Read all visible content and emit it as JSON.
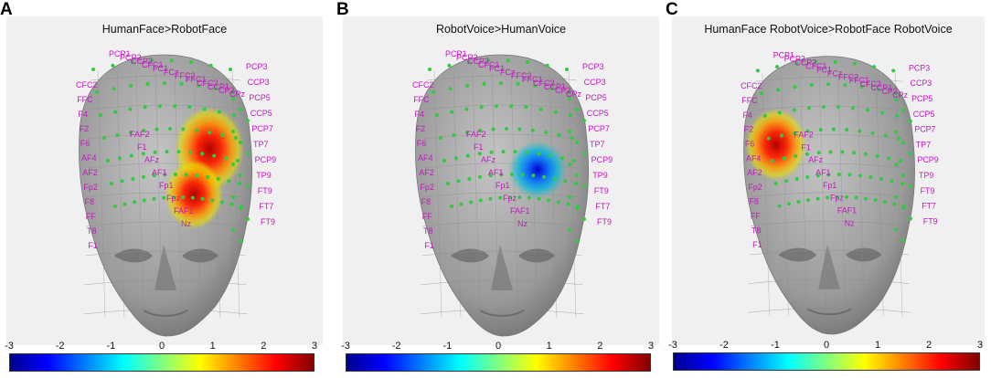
{
  "colorbar": {
    "ticks": [
      "-3",
      "-2",
      "-1",
      "0",
      "1",
      "2",
      "3"
    ],
    "stops": [
      "#00008f",
      "#0000ff",
      "#0080ff",
      "#00ffff",
      "#80ff80",
      "#ffff00",
      "#ff8000",
      "#ff0000",
      "#800000"
    ]
  },
  "colors": {
    "electrode": "#2ecc40",
    "electrode_label": "#c218c2",
    "background": "#f0f0f0",
    "head": "#9a9a9a"
  },
  "electrode_labels": {
    "top": [
      "PCP1",
      "PCP2",
      "CCP2",
      "CFC1",
      "FC1",
      "FCz",
      "FFC2",
      "FFC1",
      "CFC2",
      "CCP1",
      "CP2",
      "CPz"
    ],
    "right": [
      "PCP3",
      "CCP3",
      "PCP5",
      "CCP5",
      "PCP7",
      "TP7",
      "PCP9",
      "TP9",
      "FT9",
      "FT7",
      "FT9"
    ],
    "left": [
      "CFC2",
      "FFC",
      "F4",
      "F2",
      "F6",
      "AF4",
      "AF2",
      "Fp2",
      "F8",
      "FF",
      "T8",
      "F1"
    ],
    "center": [
      "FAF2",
      "F1",
      "AFz",
      "AF1",
      "Fp1",
      "Fpz",
      "FAF1",
      "Nz"
    ]
  },
  "panels": [
    {
      "letter": "A",
      "title": "HumanFace>RobotFace"
    },
    {
      "letter": "B",
      "title": "RobotVoice>HumanVoice"
    },
    {
      "letter": "C",
      "title": "HumanFace RobotVoice>RobotFace RobotVoice"
    }
  ]
}
